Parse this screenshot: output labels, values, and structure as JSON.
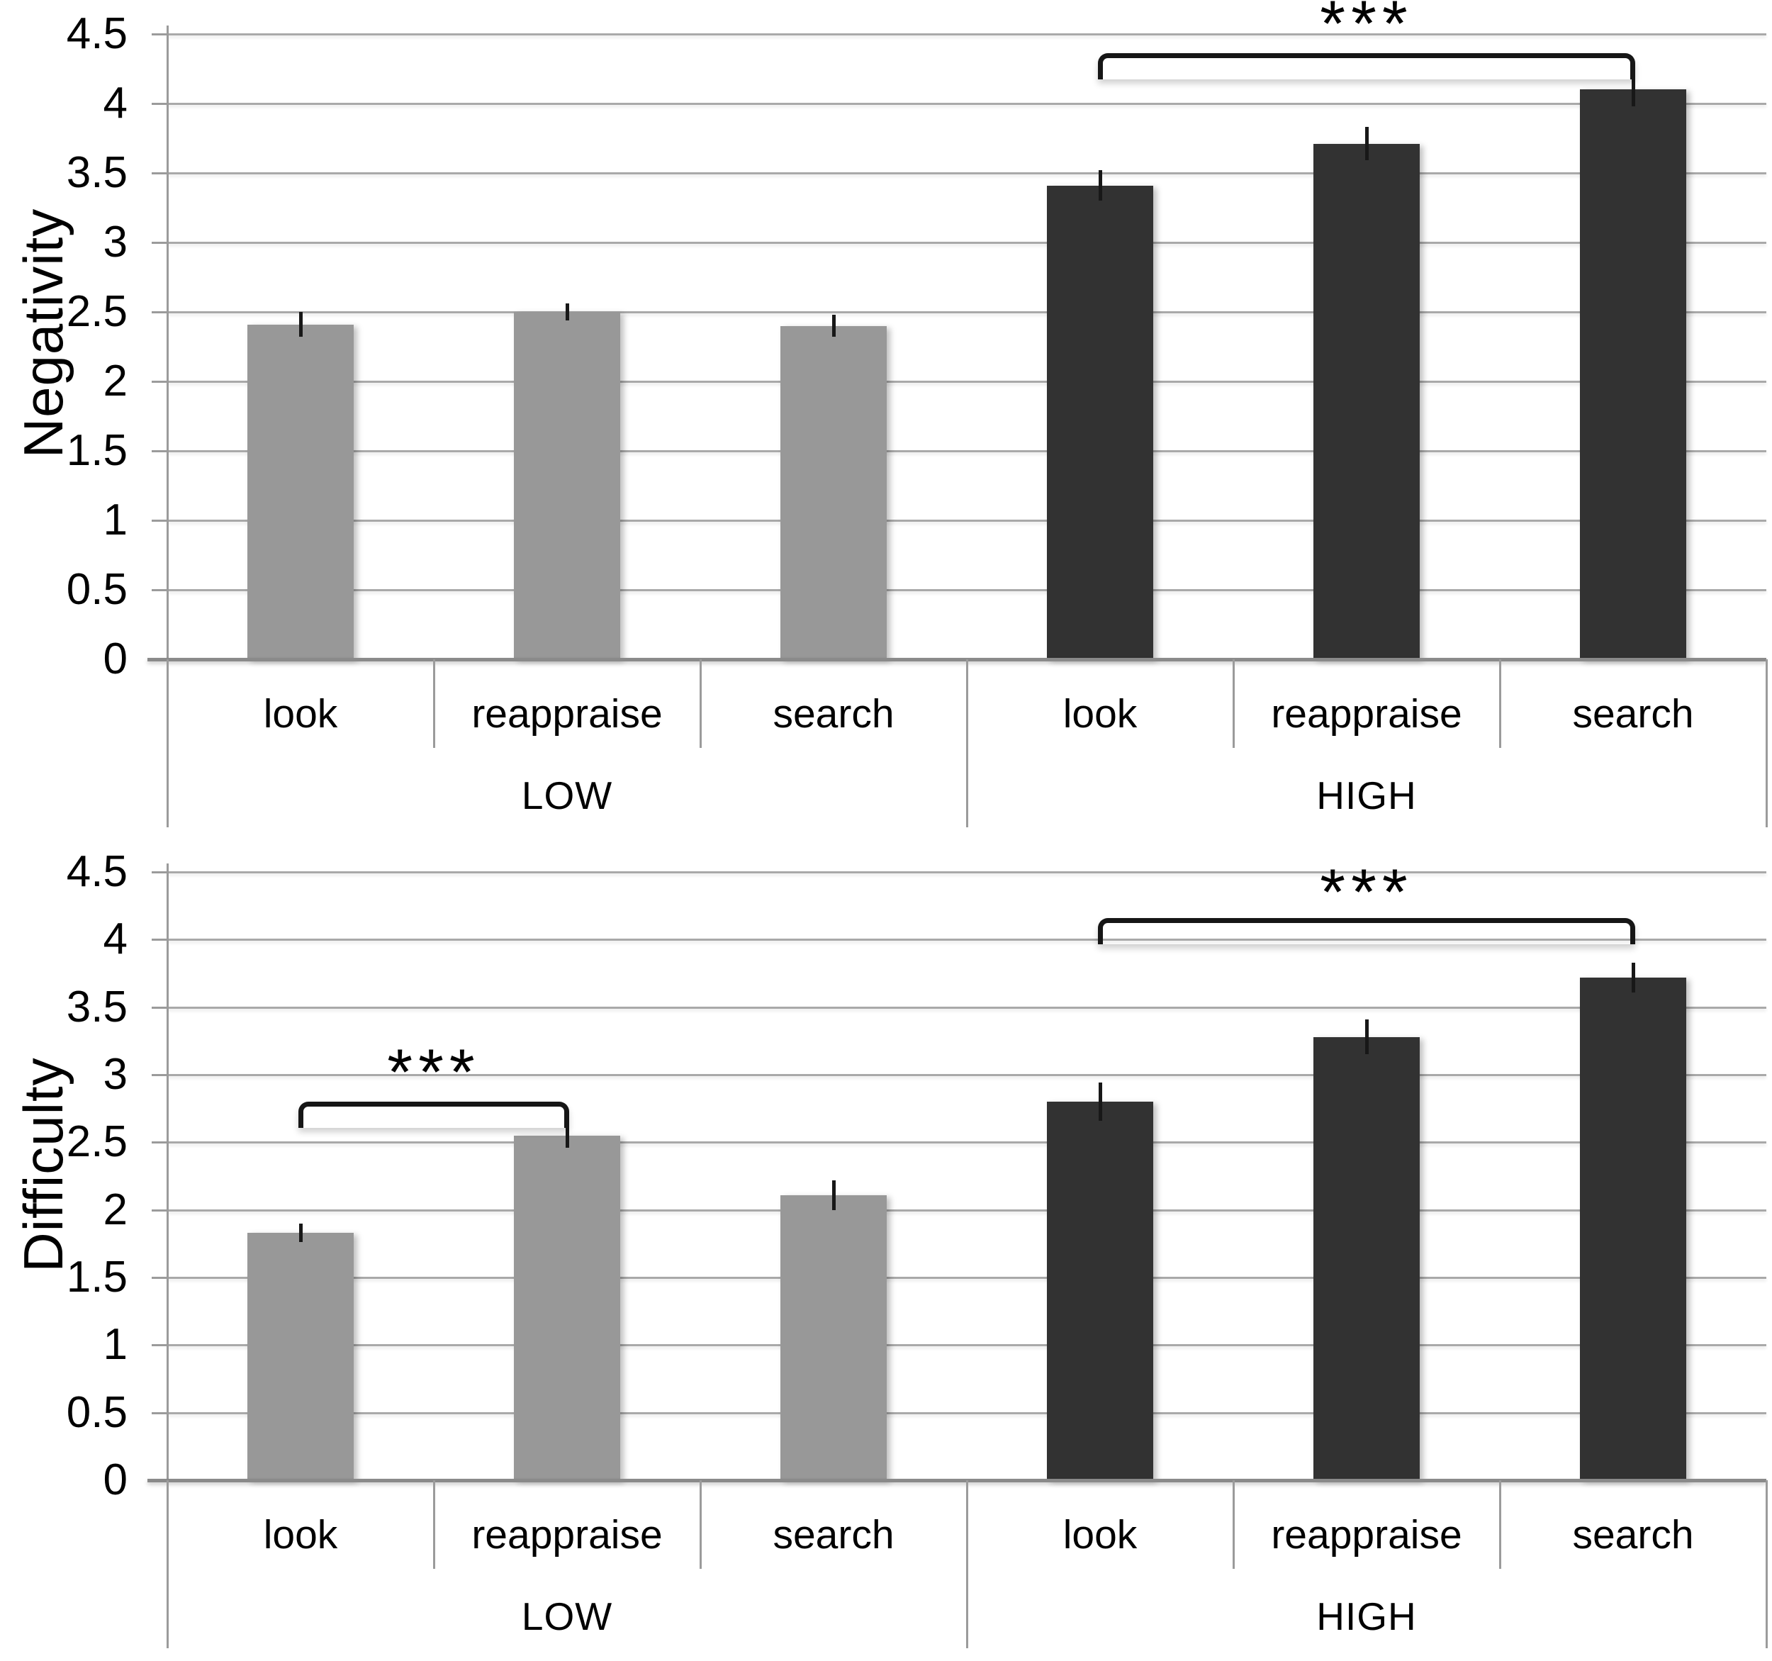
{
  "figure": {
    "background": "#ffffff",
    "bar_color_low": "#989898",
    "bar_color_high": "#323232",
    "gridline_color": "#a9a9a9",
    "axis_color": "#8a8a8a"
  },
  "chart_data": [
    {
      "type": "bar",
      "title": "",
      "ylabel": "Negativity",
      "xlabel": "",
      "ylim": [
        0,
        4.5
      ],
      "grid": true,
      "legend_position": "none",
      "ytick_labels": [
        "4.5",
        "4",
        "3.5",
        "3",
        "2.5",
        "2",
        "1.5",
        "1",
        "0.5",
        "0"
      ],
      "groups": [
        {
          "label": "LOW",
          "categories": [
            "look",
            "reappraise",
            "search"
          ]
        },
        {
          "label": "HIGH",
          "categories": [
            "look",
            "reappraise",
            "search"
          ]
        }
      ],
      "series": [
        {
          "name": "LOW",
          "color": "#989898",
          "values": [
            2.41,
            2.5,
            2.4
          ],
          "errors": [
            0.09,
            0.06,
            0.08
          ]
        },
        {
          "name": "HIGH",
          "color": "#323232",
          "values": [
            3.41,
            3.71,
            4.1
          ],
          "errors": [
            0.11,
            0.12,
            0.12
          ]
        }
      ],
      "significance": [
        {
          "from_bar": 3,
          "to_bar": 5,
          "bracket_value": 4.36,
          "label": "***",
          "label_value": 4.62
        }
      ]
    },
    {
      "type": "bar",
      "title": "",
      "ylabel": "Difficulty",
      "xlabel": "",
      "ylim": [
        0,
        4.5
      ],
      "grid": true,
      "legend_position": "none",
      "ytick_labels": [
        "4.5",
        "4",
        "3.5",
        "3",
        "2.5",
        "2",
        "1.5",
        "1",
        "0.5",
        "0"
      ],
      "groups": [
        {
          "label": "LOW",
          "categories": [
            "look",
            "reappraise",
            "search"
          ]
        },
        {
          "label": "HIGH",
          "categories": [
            "look",
            "reappraise",
            "search"
          ]
        }
      ],
      "series": [
        {
          "name": "LOW",
          "color": "#989898",
          "values": [
            1.83,
            2.55,
            2.11
          ],
          "errors": [
            0.07,
            0.09,
            0.11
          ]
        },
        {
          "name": "HIGH",
          "color": "#323232",
          "values": [
            2.8,
            3.28,
            3.72
          ],
          "errors": [
            0.14,
            0.13,
            0.11
          ]
        }
      ],
      "significance": [
        {
          "from_bar": 0,
          "to_bar": 1,
          "bracket_value": 2.8,
          "label": "***",
          "label_value": 3.07
        },
        {
          "from_bar": 3,
          "to_bar": 5,
          "bracket_value": 4.16,
          "label": "***",
          "label_value": 4.4
        }
      ]
    }
  ]
}
